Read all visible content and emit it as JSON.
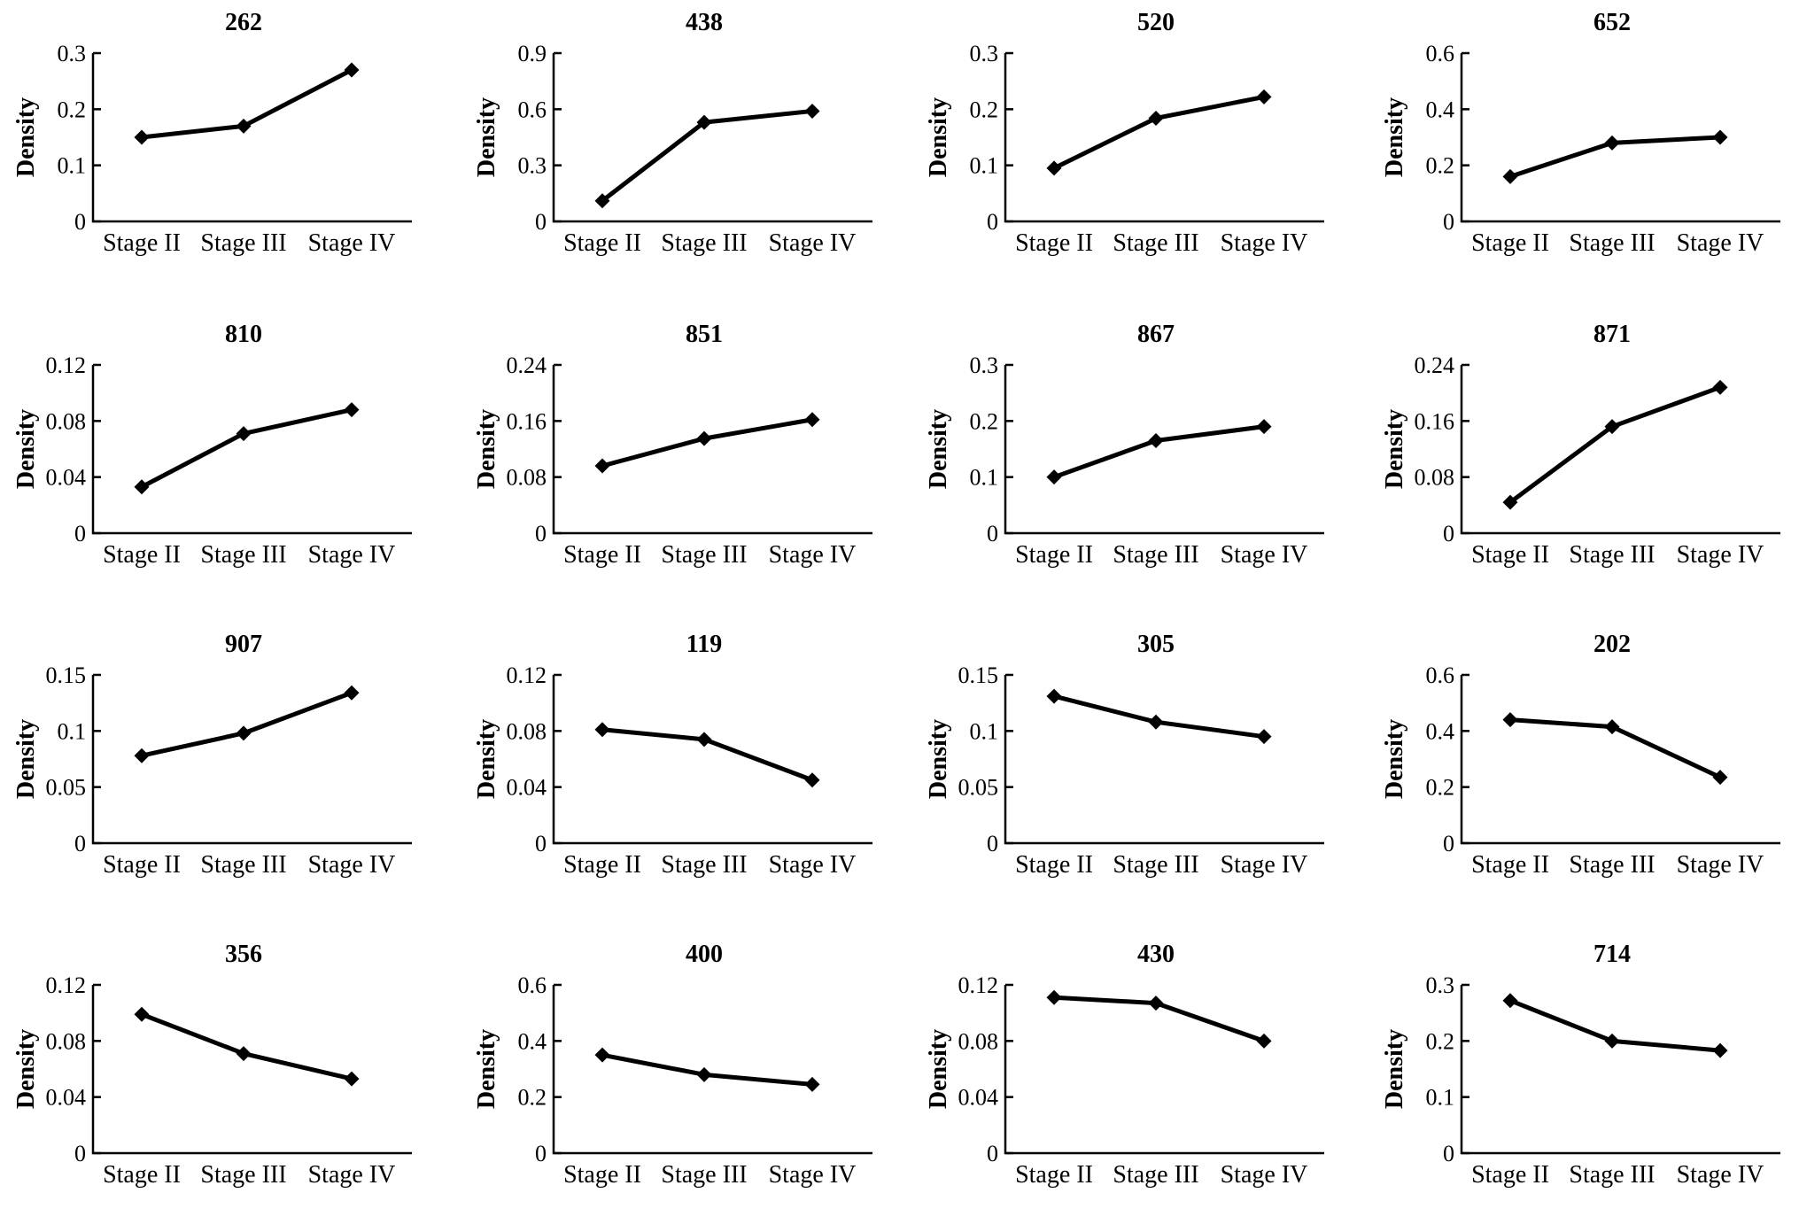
{
  "chart_data": [
    {
      "type": "line",
      "title": "262",
      "ylabel": "Density",
      "categories": [
        "Stage II",
        "Stage III",
        "Stage IV"
      ],
      "ylim": [
        0,
        0.3
      ],
      "yticks": [
        "0",
        "0.1",
        "0.2",
        "0.3"
      ],
      "series": [
        {
          "values": [
            0.15,
            0.17,
            0.27
          ]
        }
      ]
    },
    {
      "type": "line",
      "title": "438",
      "ylabel": "Density",
      "categories": [
        "Stage II",
        "Stage III",
        "Stage IV"
      ],
      "ylim": [
        0,
        0.9
      ],
      "yticks": [
        "0",
        "0.3",
        "0.6",
        "0.9"
      ],
      "series": [
        {
          "values": [
            0.11,
            0.53,
            0.59
          ]
        }
      ]
    },
    {
      "type": "line",
      "title": "520",
      "ylabel": "Density",
      "categories": [
        "Stage II",
        "Stage III",
        "Stage IV"
      ],
      "ylim": [
        0,
        0.3
      ],
      "yticks": [
        "0",
        "0.1",
        "0.2",
        "0.3"
      ],
      "series": [
        {
          "values": [
            0.095,
            0.184,
            0.222
          ]
        }
      ]
    },
    {
      "type": "line",
      "title": "652",
      "ylabel": "Density",
      "categories": [
        "Stage II",
        "Stage III",
        "Stage IV"
      ],
      "ylim": [
        0,
        0.6
      ],
      "yticks": [
        "0",
        "0.2",
        "0.4",
        "0.6"
      ],
      "series": [
        {
          "values": [
            0.16,
            0.28,
            0.3
          ]
        }
      ]
    },
    {
      "type": "line",
      "title": "810",
      "ylabel": "Density",
      "categories": [
        "Stage II",
        "Stage III",
        "Stage IV"
      ],
      "ylim": [
        0,
        0.12
      ],
      "yticks": [
        "0",
        "0.04",
        "0.08",
        "0.12"
      ],
      "series": [
        {
          "values": [
            0.033,
            0.071,
            0.088
          ]
        }
      ]
    },
    {
      "type": "line",
      "title": "851",
      "ylabel": "Density",
      "categories": [
        "Stage II",
        "Stage III",
        "Stage IV"
      ],
      "ylim": [
        0,
        0.24
      ],
      "yticks": [
        "0",
        "0.08",
        "0.16",
        "0.24"
      ],
      "series": [
        {
          "values": [
            0.096,
            0.135,
            0.162
          ]
        }
      ]
    },
    {
      "type": "line",
      "title": "867",
      "ylabel": "Density",
      "categories": [
        "Stage II",
        "Stage III",
        "Stage IV"
      ],
      "ylim": [
        0,
        0.3
      ],
      "yticks": [
        "0",
        "0.1",
        "0.2",
        "0.3"
      ],
      "series": [
        {
          "values": [
            0.1,
            0.165,
            0.19
          ]
        }
      ]
    },
    {
      "type": "line",
      "title": "871",
      "ylabel": "Density",
      "categories": [
        "Stage II",
        "Stage III",
        "Stage IV"
      ],
      "ylim": [
        0,
        0.24
      ],
      "yticks": [
        "0",
        "0.08",
        "0.16",
        "0.24"
      ],
      "series": [
        {
          "values": [
            0.044,
            0.152,
            0.208
          ]
        }
      ]
    },
    {
      "type": "line",
      "title": "907",
      "ylabel": "Density",
      "categories": [
        "Stage II",
        "Stage III",
        "Stage IV"
      ],
      "ylim": [
        0,
        0.15
      ],
      "yticks": [
        "0",
        "0.05",
        "0.1",
        "0.15"
      ],
      "series": [
        {
          "values": [
            0.078,
            0.098,
            0.134
          ]
        }
      ]
    },
    {
      "type": "line",
      "title": "119",
      "ylabel": "Density",
      "categories": [
        "Stage II",
        "Stage III",
        "Stage IV"
      ],
      "ylim": [
        0,
        0.12
      ],
      "yticks": [
        "0",
        "0.04",
        "0.08",
        "0.12"
      ],
      "series": [
        {
          "values": [
            0.081,
            0.074,
            0.045
          ]
        }
      ]
    },
    {
      "type": "line",
      "title": "305",
      "ylabel": "Density",
      "categories": [
        "Stage II",
        "Stage III",
        "Stage IV"
      ],
      "ylim": [
        0,
        0.15
      ],
      "yticks": [
        "0",
        "0.05",
        "0.1",
        "0.15"
      ],
      "series": [
        {
          "values": [
            0.131,
            0.108,
            0.095
          ]
        }
      ]
    },
    {
      "type": "line",
      "title": "202",
      "ylabel": "Density",
      "categories": [
        "Stage II",
        "Stage III",
        "Stage IV"
      ],
      "ylim": [
        0,
        0.6
      ],
      "yticks": [
        "0",
        "0.2",
        "0.4",
        "0.6"
      ],
      "series": [
        {
          "values": [
            0.44,
            0.415,
            0.235
          ]
        }
      ]
    },
    {
      "type": "line",
      "title": "356",
      "ylabel": "Density",
      "categories": [
        "Stage II",
        "Stage III",
        "Stage IV"
      ],
      "ylim": [
        0,
        0.12
      ],
      "yticks": [
        "0",
        "0.04",
        "0.08",
        "0.12"
      ],
      "series": [
        {
          "values": [
            0.099,
            0.071,
            0.053
          ]
        }
      ]
    },
    {
      "type": "line",
      "title": "400",
      "ylabel": "Density",
      "categories": [
        "Stage II",
        "Stage III",
        "Stage IV"
      ],
      "ylim": [
        0,
        0.6
      ],
      "yticks": [
        "0",
        "0.2",
        "0.4",
        "0.6"
      ],
      "series": [
        {
          "values": [
            0.35,
            0.28,
            0.245
          ]
        }
      ]
    },
    {
      "type": "line",
      "title": "430",
      "ylabel": "Density",
      "categories": [
        "Stage II",
        "Stage III",
        "Stage IV"
      ],
      "ylim": [
        0,
        0.12
      ],
      "yticks": [
        "0",
        "0.04",
        "0.08",
        "0.12"
      ],
      "series": [
        {
          "values": [
            0.111,
            0.107,
            0.08
          ]
        }
      ]
    },
    {
      "type": "line",
      "title": "714",
      "ylabel": "Density",
      "categories": [
        "Stage II",
        "Stage III",
        "Stage IV"
      ],
      "ylim": [
        0,
        0.3
      ],
      "yticks": [
        "0",
        "0.1",
        "0.2",
        "0.3"
      ],
      "series": [
        {
          "values": [
            0.272,
            0.2,
            0.183
          ]
        }
      ]
    }
  ]
}
